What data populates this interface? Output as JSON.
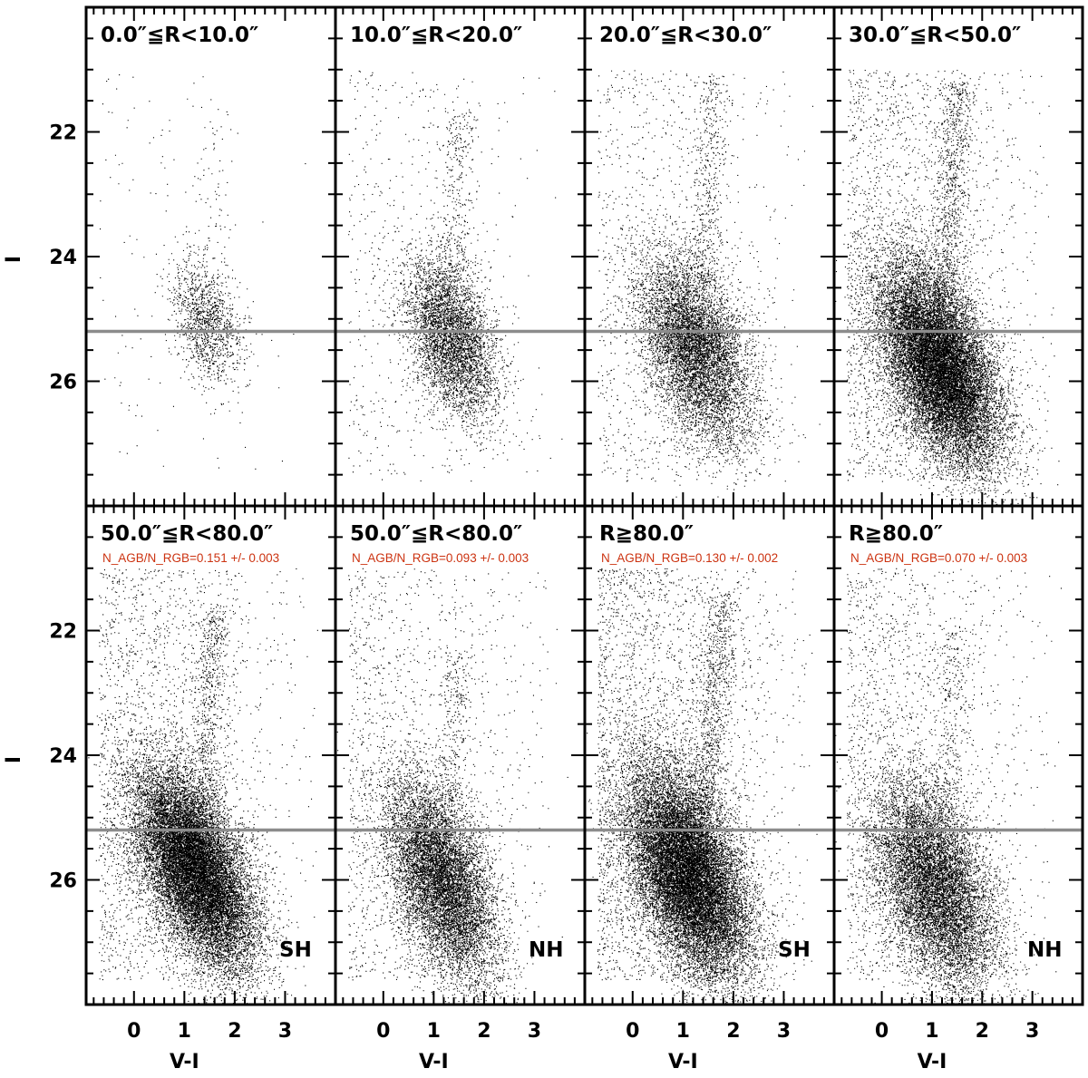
{
  "figure": {
    "y_axis_label": "I",
    "x_axis_label": "V-I"
  },
  "colors": {
    "points": "#000000",
    "reference_line": "#8c8c8c",
    "annotation": "#cc3311",
    "frame": "#000000"
  },
  "chart_data": {
    "type": "scatter",
    "layout": "2 rows x 4 columns, shared axes",
    "x_label": "V-I",
    "y_label": "I",
    "xlim": [
      -0.95,
      4.0
    ],
    "ylim": [
      28.0,
      20.0
    ],
    "y_inverted": true,
    "x_ticks": [
      0,
      1,
      2,
      3
    ],
    "y_ticks": [
      22,
      24,
      26
    ],
    "reference_line_I": 25.2,
    "panels": [
      {
        "title": "0.0″≦R<10.0″",
        "annotation": "",
        "tag": "",
        "n_points": 1500,
        "clump": {
          "x": 1.45,
          "y": 25.05,
          "sx": 0.35,
          "sy": 0.5,
          "rho": 0.35
        },
        "rgb_tip": {
          "x": 1.6,
          "y": 21.6,
          "n": 70
        },
        "field_fraction": 0.08
      },
      {
        "title": "10.0″≦R<20.0″",
        "annotation": "",
        "tag": "",
        "n_points": 5500,
        "clump": {
          "x": 1.35,
          "y": 25.3,
          "sx": 0.45,
          "sy": 0.65,
          "rho": 0.4
        },
        "rgb_tip": {
          "x": 1.5,
          "y": 21.6,
          "n": 300
        },
        "field_fraction": 0.09
      },
      {
        "title": "20.0″≦R<30.0″",
        "annotation": "",
        "tag": "",
        "n_points": 9000,
        "clump": {
          "x": 1.25,
          "y": 25.5,
          "sx": 0.55,
          "sy": 0.75,
          "rho": 0.45
        },
        "rgb_tip": {
          "x": 1.6,
          "y": 21.1,
          "n": 500
        },
        "field_fraction": 0.1
      },
      {
        "title": "30.0″≦R<50.0″",
        "annotation": "",
        "tag": "",
        "n_points": 20000,
        "clump": {
          "x": 1.15,
          "y": 25.75,
          "sx": 0.6,
          "sy": 0.8,
          "rho": 0.5
        },
        "rgb_tip": {
          "x": 1.5,
          "y": 21.2,
          "n": 900
        },
        "field_fraction": 0.1
      },
      {
        "title": "50.0″≦R<80.0″",
        "annotation": "N_AGB/N_RGB=0.151 +/- 0.003",
        "tag": "SH",
        "n_points": 20000,
        "clump": {
          "x": 1.2,
          "y": 25.8,
          "sx": 0.6,
          "sy": 0.8,
          "rho": 0.55
        },
        "rgb_tip": {
          "x": 1.6,
          "y": 21.6,
          "n": 700
        },
        "field_fraction": 0.1
      },
      {
        "title": "50.0″≦R<80.0″",
        "annotation": "N_AGB/N_RGB=0.093 +/- 0.003",
        "tag": "NH",
        "n_points": 11000,
        "clump": {
          "x": 1.15,
          "y": 26.0,
          "sx": 0.55,
          "sy": 0.8,
          "rho": 0.5
        },
        "rgb_tip": {
          "x": 1.5,
          "y": 22.3,
          "n": 300
        },
        "field_fraction": 0.12
      },
      {
        "title": "R≧80.0″",
        "annotation": "N_AGB/N_RGB=0.130 +/- 0.002",
        "tag": "SH",
        "n_points": 22000,
        "clump": {
          "x": 1.1,
          "y": 25.9,
          "sx": 0.6,
          "sy": 0.85,
          "rho": 0.5
        },
        "rgb_tip": {
          "x": 1.8,
          "y": 21.4,
          "n": 900
        },
        "field_fraction": 0.13
      },
      {
        "title": "R≧80.0″",
        "annotation": "N_AGB/N_RGB=0.070 +/- 0.003",
        "tag": "NH",
        "n_points": 12000,
        "clump": {
          "x": 1.05,
          "y": 26.1,
          "sx": 0.6,
          "sy": 0.85,
          "rho": 0.45
        },
        "rgb_tip": {
          "x": 1.5,
          "y": 22.0,
          "n": 300
        },
        "field_fraction": 0.14
      }
    ]
  }
}
